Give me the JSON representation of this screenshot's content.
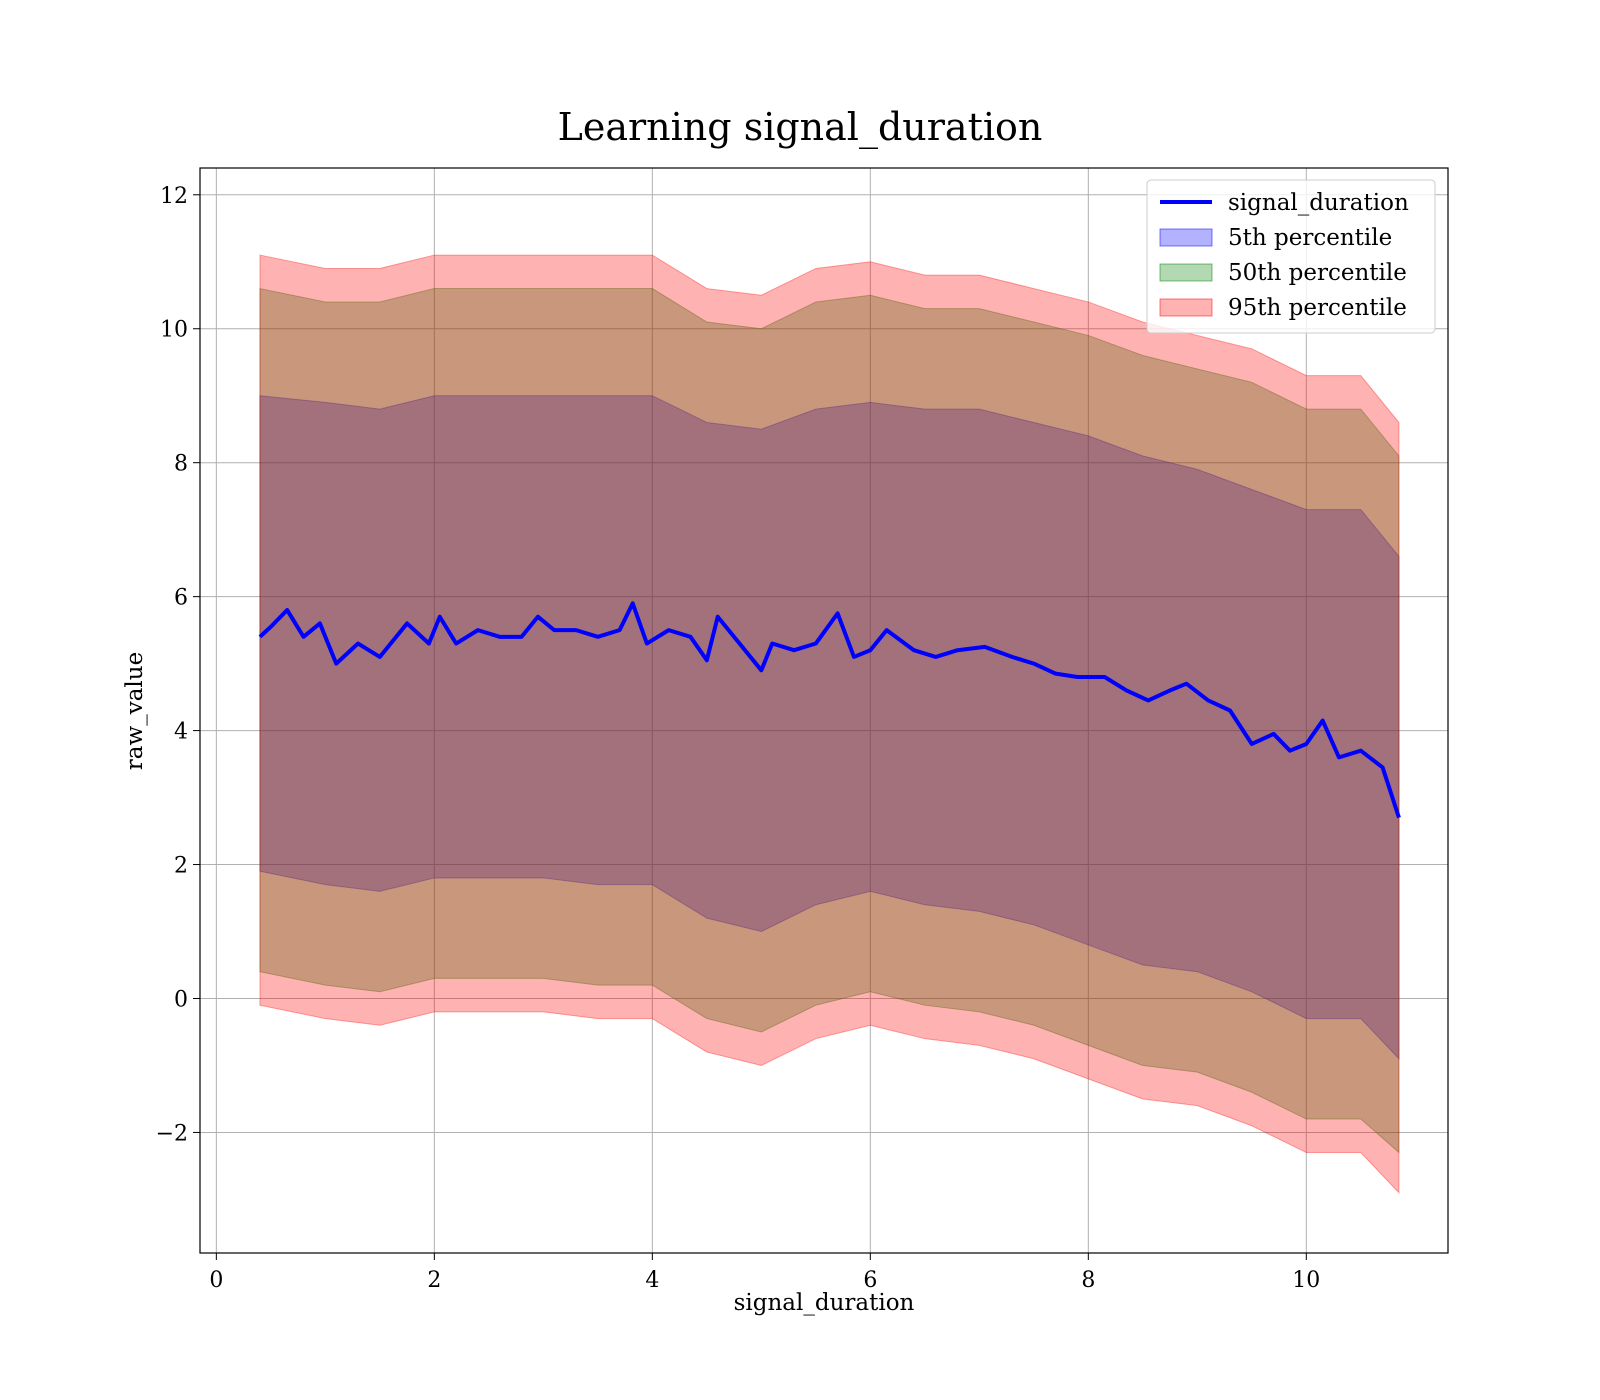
{
  "chart_data": {
    "type": "area",
    "title": "Learning signal_duration",
    "xlabel": "signal_duration",
    "ylabel": "raw_value",
    "xlim": [
      -0.15,
      11.3
    ],
    "ylim": [
      -3.8,
      12.4
    ],
    "x_ticks": [
      0,
      2,
      4,
      6,
      8,
      10
    ],
    "x_tick_labels": [
      "0",
      "2",
      "4",
      "6",
      "8",
      "10"
    ],
    "y_ticks": [
      -2,
      0,
      2,
      4,
      6,
      8,
      10,
      12
    ],
    "y_tick_labels": [
      "−2",
      "0",
      "2",
      "4",
      "6",
      "8",
      "10",
      "12"
    ],
    "grid": true,
    "legend_position": "upper-right",
    "series": [
      {
        "name": "signal_duration",
        "kind": "line",
        "color": "#0000ff",
        "x": [
          0.4,
          0.5,
          0.65,
          0.8,
          0.95,
          1.1,
          1.3,
          1.5,
          1.75,
          1.95,
          2.05,
          2.2,
          2.4,
          2.6,
          2.8,
          2.95,
          3.1,
          3.3,
          3.5,
          3.7,
          3.82,
          3.95,
          4.15,
          4.35,
          4.5,
          4.6,
          4.8,
          5.0,
          5.1,
          5.3,
          5.5,
          5.7,
          5.85,
          6.0,
          6.15,
          6.4,
          6.6,
          6.8,
          7.05,
          7.3,
          7.5,
          7.7,
          7.9,
          8.15,
          8.35,
          8.55,
          8.75,
          8.9,
          9.1,
          9.3,
          9.5,
          9.7,
          9.85,
          10.0,
          10.15,
          10.3,
          10.5,
          10.7,
          10.85
        ],
        "y": [
          5.4,
          5.55,
          5.8,
          5.4,
          5.6,
          5.0,
          5.3,
          5.1,
          5.6,
          5.3,
          5.7,
          5.3,
          5.5,
          5.4,
          5.4,
          5.7,
          5.5,
          5.5,
          5.4,
          5.5,
          5.9,
          5.3,
          5.5,
          5.4,
          5.05,
          5.7,
          5.3,
          4.9,
          5.3,
          5.2,
          5.3,
          5.75,
          5.1,
          5.2,
          5.5,
          5.2,
          5.1,
          5.2,
          5.25,
          5.1,
          5.0,
          4.85,
          4.8,
          4.8,
          4.6,
          4.45,
          4.6,
          4.7,
          4.45,
          4.3,
          3.8,
          3.95,
          3.7,
          3.8,
          4.15,
          3.6,
          3.7,
          3.45,
          2.7
        ]
      },
      {
        "name": "5th percentile",
        "kind": "band",
        "color": "#0000ff",
        "opacity": 0.3,
        "x": [
          0.4,
          1.0,
          1.5,
          2.0,
          2.5,
          3.0,
          3.5,
          4.0,
          4.5,
          5.0,
          5.5,
          6.0,
          6.5,
          7.0,
          7.5,
          8.0,
          8.5,
          9.0,
          9.5,
          10.0,
          10.5,
          10.85
        ],
        "lower": [
          1.9,
          1.7,
          1.6,
          1.8,
          1.8,
          1.8,
          1.7,
          1.7,
          1.2,
          1.0,
          1.4,
          1.6,
          1.4,
          1.3,
          1.1,
          0.8,
          0.5,
          0.4,
          0.1,
          -0.3,
          -0.3,
          -0.9
        ],
        "upper": [
          9.0,
          8.9,
          8.8,
          9.0,
          9.0,
          9.0,
          9.0,
          9.0,
          8.6,
          8.5,
          8.8,
          8.9,
          8.8,
          8.8,
          8.6,
          8.4,
          8.1,
          7.9,
          7.6,
          7.3,
          7.3,
          6.6
        ]
      },
      {
        "name": "50th percentile",
        "kind": "band",
        "color": "#008000",
        "opacity": 0.3,
        "x": [
          0.4,
          1.0,
          1.5,
          2.0,
          2.5,
          3.0,
          3.5,
          4.0,
          4.5,
          5.0,
          5.5,
          6.0,
          6.5,
          7.0,
          7.5,
          8.0,
          8.5,
          9.0,
          9.5,
          10.0,
          10.5,
          10.85
        ],
        "lower": [
          0.4,
          0.2,
          0.1,
          0.3,
          0.3,
          0.3,
          0.2,
          0.2,
          -0.3,
          -0.5,
          -0.1,
          0.1,
          -0.1,
          -0.2,
          -0.4,
          -0.7,
          -1.0,
          -1.1,
          -1.4,
          -1.8,
          -1.8,
          -2.3
        ],
        "upper": [
          10.6,
          10.4,
          10.4,
          10.6,
          10.6,
          10.6,
          10.6,
          10.6,
          10.1,
          10.0,
          10.4,
          10.5,
          10.3,
          10.3,
          10.1,
          9.9,
          9.6,
          9.4,
          9.2,
          8.8,
          8.8,
          8.1
        ]
      },
      {
        "name": "95th percentile",
        "kind": "band",
        "color": "#ff0000",
        "opacity": 0.3,
        "x": [
          0.4,
          1.0,
          1.5,
          2.0,
          2.5,
          3.0,
          3.5,
          4.0,
          4.5,
          5.0,
          5.5,
          6.0,
          6.5,
          7.0,
          7.5,
          8.0,
          8.5,
          9.0,
          9.5,
          10.0,
          10.5,
          10.85
        ],
        "lower": [
          -0.1,
          -0.3,
          -0.4,
          -0.2,
          -0.2,
          -0.2,
          -0.3,
          -0.3,
          -0.8,
          -1.0,
          -0.6,
          -0.4,
          -0.6,
          -0.7,
          -0.9,
          -1.2,
          -1.5,
          -1.6,
          -1.9,
          -2.3,
          -2.3,
          -2.9
        ],
        "upper": [
          11.1,
          10.9,
          10.9,
          11.1,
          11.1,
          11.1,
          11.1,
          11.1,
          10.6,
          10.5,
          10.9,
          11.0,
          10.8,
          10.8,
          10.6,
          10.4,
          10.1,
          9.9,
          9.7,
          9.3,
          9.3,
          8.6
        ]
      }
    ]
  }
}
